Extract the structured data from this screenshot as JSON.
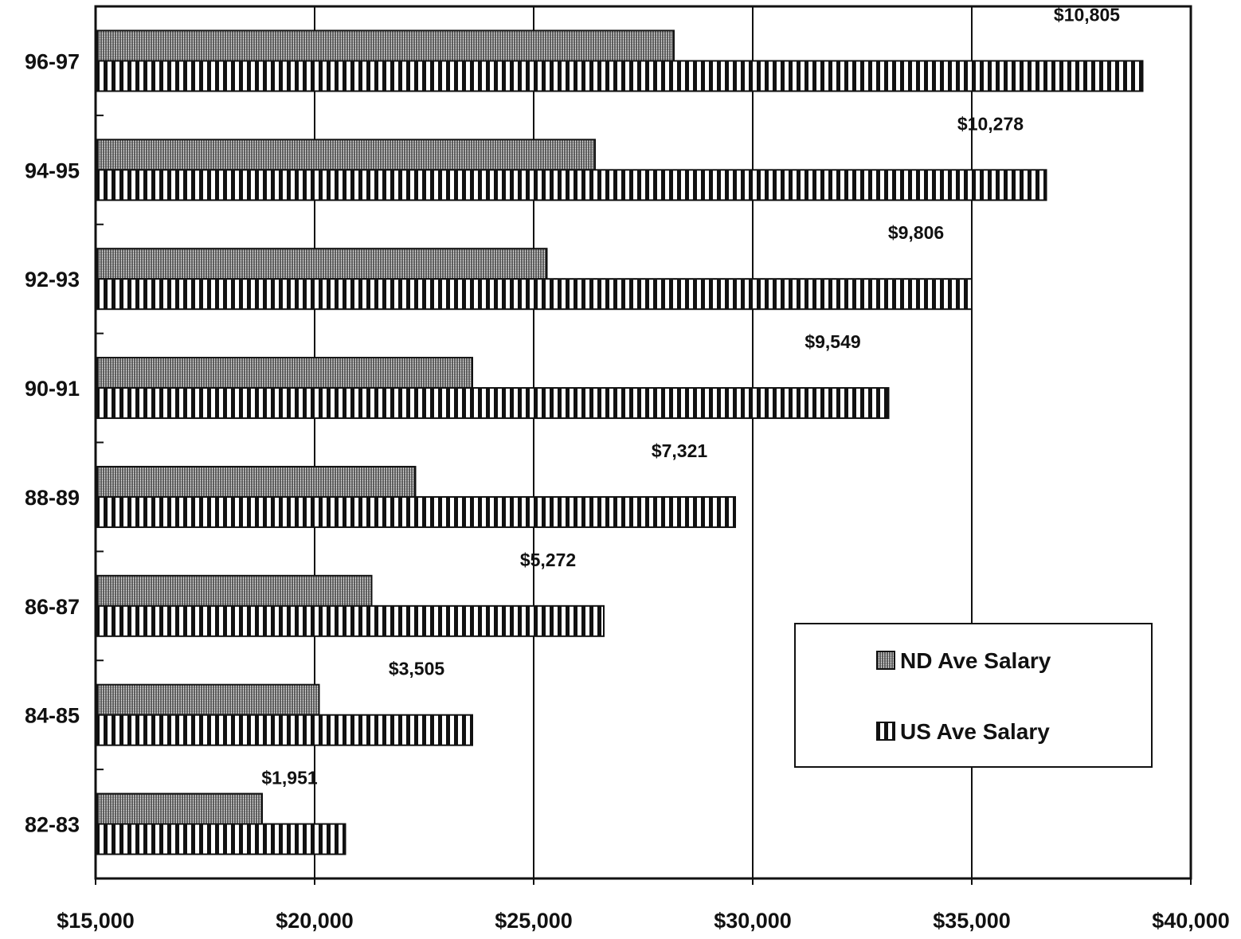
{
  "chart_data": {
    "type": "bar",
    "orientation": "horizontal",
    "categories": [
      "96-97",
      "94-95",
      "92-93",
      "90-91",
      "88-89",
      "86-87",
      "84-85",
      "82-83"
    ],
    "series": [
      {
        "name": "ND Ave Salary",
        "values": [
          28200,
          26400,
          25300,
          23600,
          22300,
          21300,
          20100,
          18800
        ]
      },
      {
        "name": "US Ave Salary",
        "values": [
          38900,
          36700,
          35000,
          33100,
          29600,
          26600,
          23600,
          20700
        ]
      }
    ],
    "difference_labels": [
      "$10,805",
      "$10,278",
      "$9,806",
      "$9,549",
      "$7,321",
      "$5,272",
      "$3,505",
      "$1,951"
    ],
    "xlim": [
      15000,
      40000
    ],
    "x_ticks": [
      15000,
      20000,
      25000,
      30000,
      35000,
      40000
    ],
    "x_tick_labels": [
      "$15,000",
      "$20,000",
      "$25,000",
      "$30,000",
      "$35,000",
      "$40,000"
    ],
    "grid": true,
    "legend_position": "lower-right",
    "colors": {
      "ink": "#111111",
      "background": "#ffffff"
    }
  }
}
